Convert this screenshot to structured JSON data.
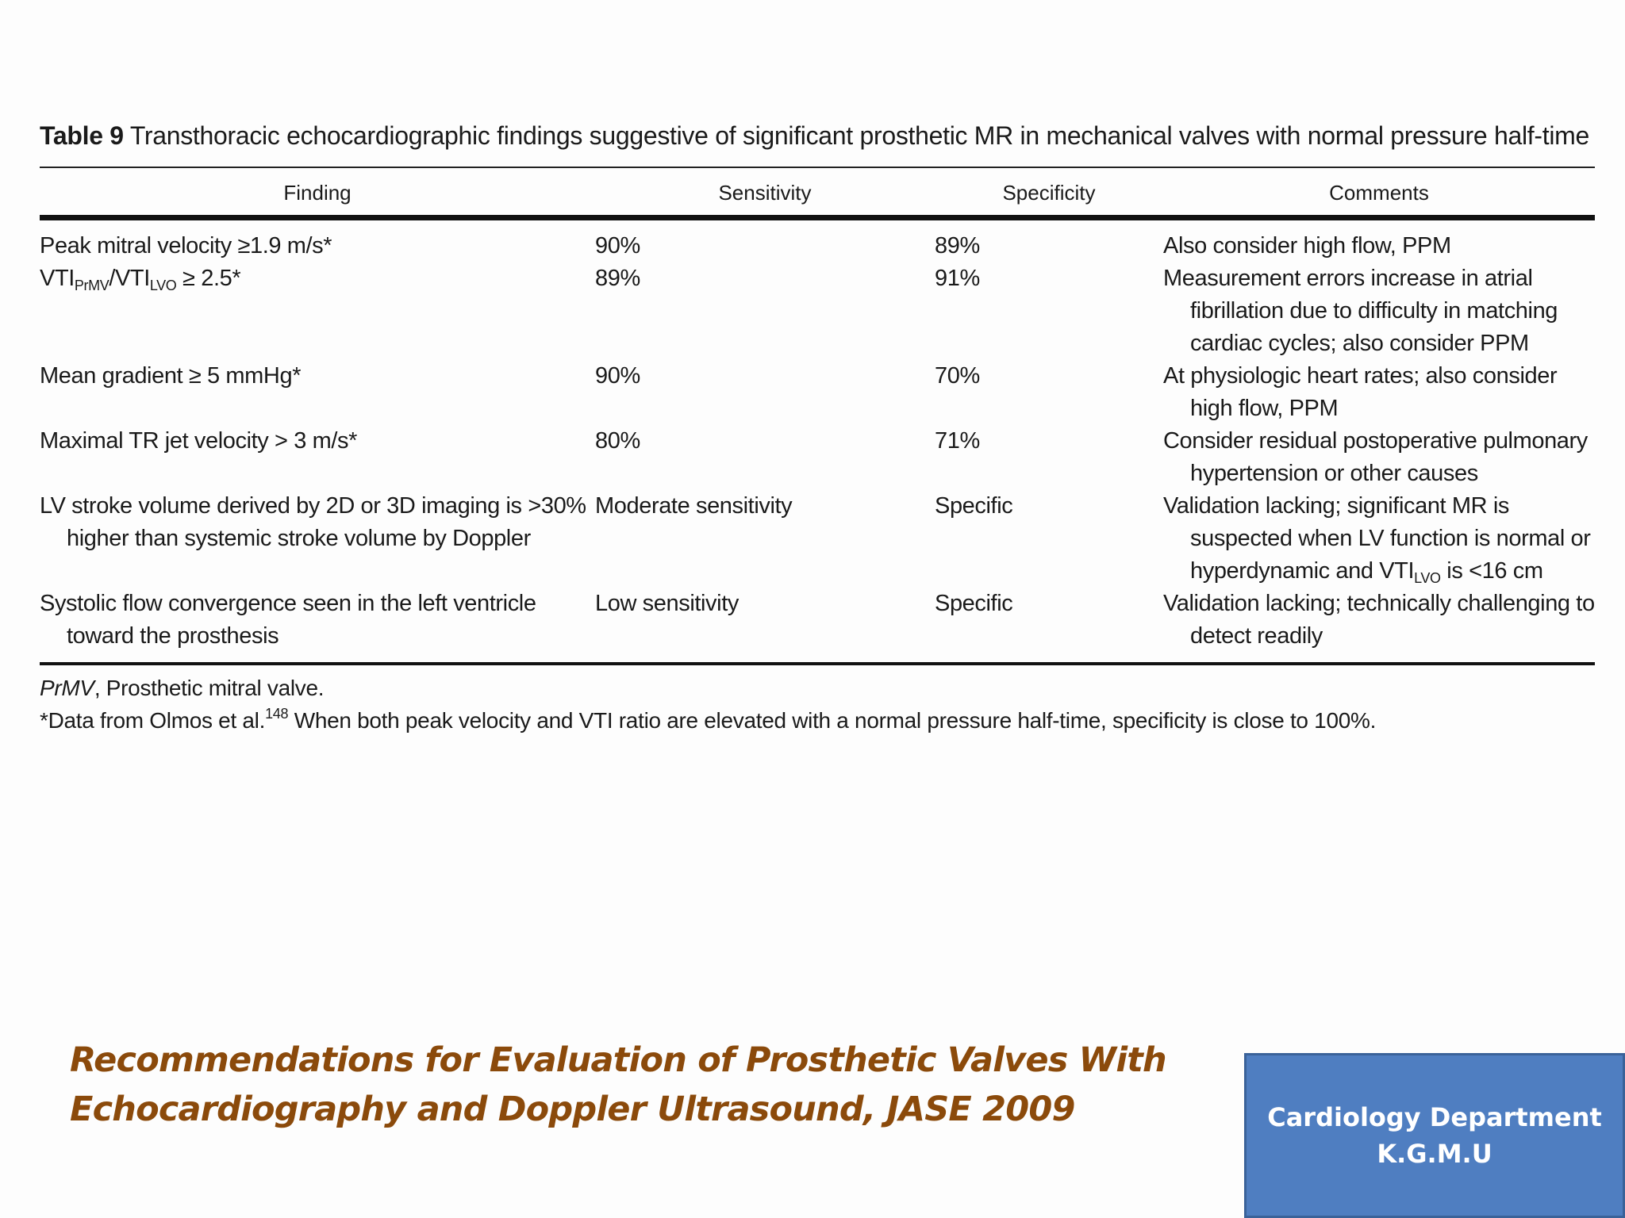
{
  "table": {
    "label": "Table 9",
    "title": "Transthoracic echocardiographic findings suggestive of significant prosthetic MR in mechanical valves with normal pressure half-time",
    "headers": [
      "Finding",
      "Sensitivity",
      "Specificity",
      "Comments"
    ],
    "rows": [
      {
        "finding": "Peak mitral velocity ≥1.9 m/s*",
        "sensitivity": "90%",
        "specificity": "89%",
        "comments": "Also consider high flow, PPM"
      },
      {
        "finding_parts": {
          "a": "VTI",
          "a_sub": "PrMV",
          "b": "/VTI",
          "b_sub": "LVO",
          "c": " ≥ 2.5*"
        },
        "sensitivity": "89%",
        "specificity": "91%",
        "comments": "Measurement errors increase in atrial fibrillation due to difficulty in matching cardiac cycles; also consider PPM"
      },
      {
        "finding": "Mean gradient ≥ 5 mmHg*",
        "sensitivity": "90%",
        "specificity": "70%",
        "comments": "At physiologic heart rates; also consider high flow, PPM"
      },
      {
        "finding": "Maximal TR jet velocity > 3 m/s*",
        "sensitivity": "80%",
        "specificity": "71%",
        "comments": "Consider residual postoperative pulmonary hypertension or other causes"
      },
      {
        "finding": "LV stroke volume derived by 2D or 3D imaging is >30% higher than systemic stroke volume by Doppler",
        "sensitivity": "Moderate sensitivity",
        "specificity": "Specific",
        "comments_parts": {
          "a": "Validation lacking; significant MR is suspected when LV function is normal or hyperdynamic and VTI",
          "a_sub": "LVO",
          "b": " is <16 cm"
        }
      },
      {
        "finding": "Systolic flow convergence seen in the left ventricle toward the prosthesis",
        "sensitivity": "Low sensitivity",
        "specificity": "Specific",
        "comments": "Validation lacking; technically challenging to detect readily"
      }
    ],
    "footnote_abbr": "PrMV",
    "footnote_abbr_text": ", Prosthetic mitral valve.",
    "footnote_data_a": "*Data from Olmos et al.",
    "footnote_ref": "148",
    "footnote_data_b": " When both peak velocity and VTI ratio are elevated with a normal pressure half-time, specificity is close to 100%."
  },
  "reference": {
    "line1": "Recommendations for Evaluation of Prosthetic Valves With",
    "line2": "Echocardiography and Doppler Ultrasound, JASE 2009"
  },
  "department": {
    "line1": "Cardiology Department",
    "line2": "K.G.M.U"
  },
  "colors": {
    "reference_text": "#8b4a0b",
    "dept_box": "#4f7ec1"
  }
}
